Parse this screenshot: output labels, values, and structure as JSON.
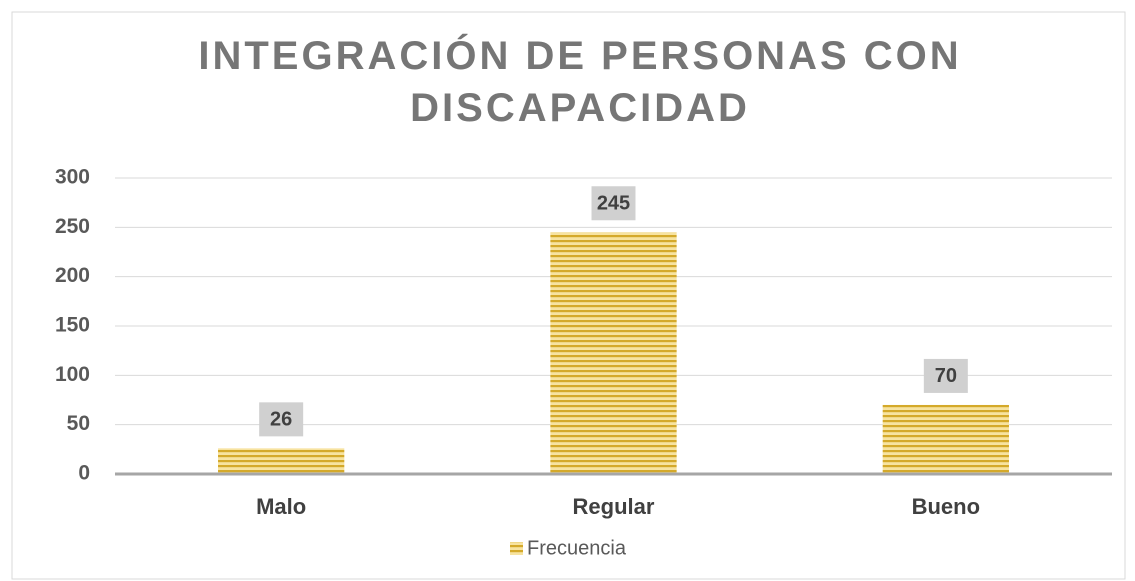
{
  "chart_data": {
    "type": "bar",
    "title": "INTEGRACIÓN DE PERSONAS CON DISCAPACIDAD",
    "categories": [
      "Malo",
      "Regular",
      "Bueno"
    ],
    "series": [
      {
        "name": "Frecuencia",
        "color": "#d4a92a",
        "values": [
          26,
          245,
          70
        ]
      }
    ],
    "ylim": [
      0,
      300
    ],
    "yticks": [
      0,
      50,
      100,
      150,
      200,
      250,
      300
    ],
    "grid": true,
    "legend": "bottom"
  }
}
